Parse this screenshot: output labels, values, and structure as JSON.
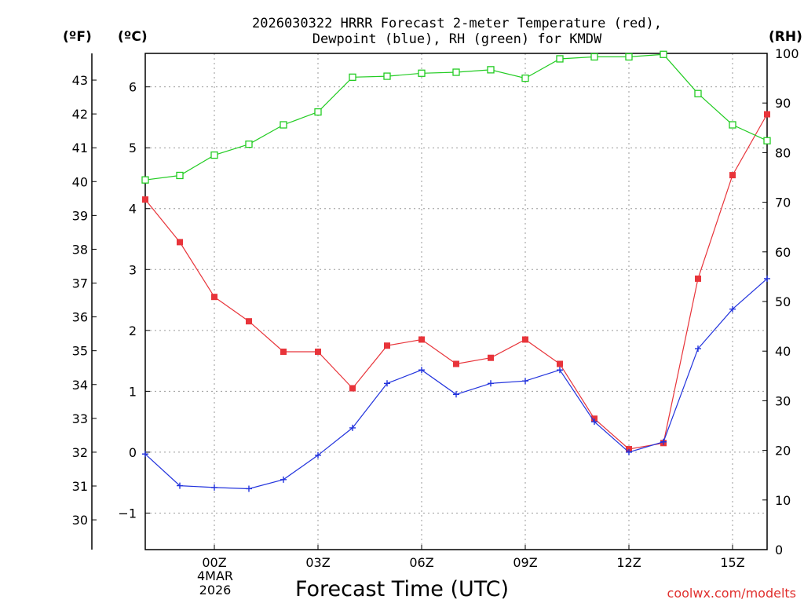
{
  "chart_data": {
    "type": "line",
    "title_line1": "2026030322 HRRR Forecast 2-meter Temperature (red),",
    "title_line2": "Dewpoint (blue), RH (green) for KMDW",
    "xlabel": "Forecast Time (UTC)",
    "credit": "coolwx.com/modelts",
    "units": {
      "fahrenheit": "(ºF)",
      "celsius": "(ºC)",
      "rh": "(RH)"
    },
    "x_hours": [
      -2,
      -1,
      0,
      1,
      2,
      3,
      4,
      5,
      6,
      7,
      8,
      9,
      10,
      11,
      12,
      13,
      14,
      15,
      16
    ],
    "x_ticks": [
      {
        "hour": 0,
        "label": "00Z"
      },
      {
        "hour": 3,
        "label": "03Z"
      },
      {
        "hour": 6,
        "label": "06Z"
      },
      {
        "hour": 9,
        "label": "09Z"
      },
      {
        "hour": 12,
        "label": "12Z"
      },
      {
        "hour": 15,
        "label": "15Z"
      }
    ],
    "date_label_1": "4MAR",
    "date_label_2": "2026",
    "celsius_range": [
      -1.6,
      6.55
    ],
    "celsius_ticks": [
      -1,
      0,
      1,
      2,
      3,
      4,
      5,
      6
    ],
    "fahrenheit_ticks": [
      30,
      31,
      32,
      33,
      34,
      35,
      36,
      37,
      38,
      39,
      40,
      41,
      42,
      43
    ],
    "rh_range": [
      0,
      100
    ],
    "rh_ticks": [
      0,
      10,
      20,
      30,
      40,
      50,
      60,
      70,
      80,
      90,
      100
    ],
    "grid": true,
    "series": [
      {
        "name": "Temperature",
        "unit": "C",
        "color": "#e8343a",
        "marker": "filled-square",
        "values": [
          4.15,
          3.45,
          2.55,
          2.15,
          1.65,
          1.65,
          1.05,
          1.75,
          1.85,
          1.45,
          1.55,
          1.85,
          1.45,
          0.55,
          0.05,
          0.15,
          2.85,
          4.55,
          5.55
        ]
      },
      {
        "name": "Dewpoint",
        "unit": "C",
        "color": "#2233dd",
        "marker": "plus",
        "values": [
          -0.03,
          -0.55,
          -0.58,
          -0.6,
          -0.45,
          -0.05,
          0.4,
          1.13,
          1.35,
          0.95,
          1.13,
          1.17,
          1.35,
          0.5,
          0.0,
          0.17,
          1.7,
          2.35,
          2.85
        ]
      },
      {
        "name": "RH",
        "unit": "%",
        "color": "#22cc22",
        "marker": "open-square",
        "values": [
          74.5,
          75.4,
          79.5,
          81.7,
          85.6,
          88.2,
          95.2,
          95.4,
          96.0,
          96.2,
          96.7,
          95.0,
          98.9,
          99.3,
          99.3,
          99.8,
          91.9,
          85.6,
          82.4
        ]
      }
    ]
  }
}
